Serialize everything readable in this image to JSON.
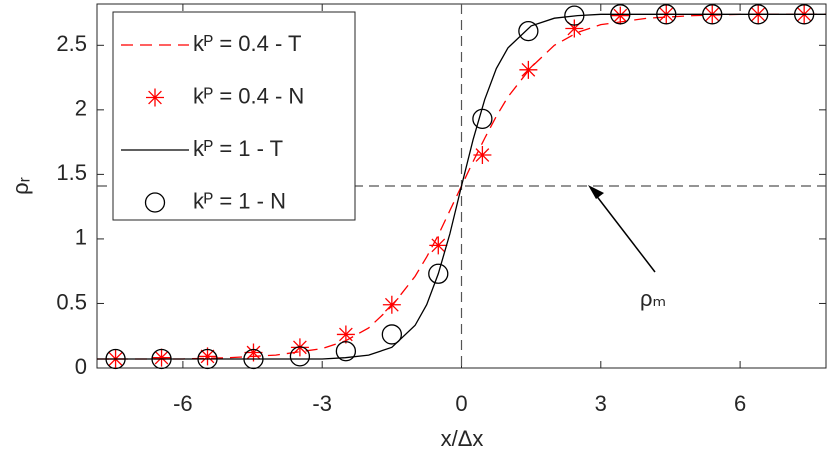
{
  "chart_data": {
    "type": "line",
    "xlabel": "x/Δx",
    "ylabel": "ρᵣ",
    "xlim": [
      -7.85,
      7.85
    ],
    "ylim": [
      0,
      2.82
    ],
    "xticks": [
      -6,
      -3,
      0,
      3,
      6
    ],
    "yticks": [
      0,
      0.5,
      1,
      1.5,
      2,
      2.5
    ],
    "reference_lines": {
      "x": 0,
      "y": 1.41
    },
    "annotation": {
      "text": "ρₘ"
    },
    "legend": "upper left",
    "series": [
      {
        "name": "kᴾ = 0.4 - T",
        "color": "#ff0000",
        "line": "dashed",
        "marker": "none",
        "x": [
          -7.85,
          -7,
          -6,
          -5,
          -4,
          -3,
          -2.5,
          -2,
          -1.5,
          -1,
          -0.75,
          -0.5,
          -0.25,
          0,
          0.25,
          0.5,
          0.75,
          1,
          1.5,
          2,
          2.5,
          3,
          4,
          5,
          6,
          7,
          7.85
        ],
        "values": [
          0.07,
          0.07,
          0.07,
          0.08,
          0.1,
          0.15,
          0.21,
          0.31,
          0.48,
          0.71,
          0.86,
          1.03,
          1.22,
          1.41,
          1.6,
          1.78,
          1.95,
          2.1,
          2.33,
          2.5,
          2.6,
          2.66,
          2.71,
          2.73,
          2.74,
          2.74,
          2.74
        ]
      },
      {
        "name": "kᴾ = 0.4 - N",
        "color": "#ff0000",
        "line": "none",
        "marker": "asterisk",
        "x": [
          -7.45,
          -6.46,
          -5.47,
          -4.48,
          -3.48,
          -2.49,
          -1.5,
          -0.5,
          0.45,
          1.44,
          2.43,
          3.42,
          4.41,
          5.4,
          6.39,
          7.38
        ],
        "values": [
          0.07,
          0.08,
          0.09,
          0.12,
          0.16,
          0.26,
          0.49,
          0.95,
          1.65,
          2.31,
          2.63,
          2.73,
          2.74,
          2.74,
          2.74,
          2.74
        ]
      },
      {
        "name": "kᴾ = 1 - T",
        "color": "#000000",
        "line": "solid",
        "marker": "none",
        "x": [
          -7.85,
          -7,
          -6,
          -5,
          -4,
          -3,
          -2.5,
          -2,
          -1.5,
          -1,
          -0.75,
          -0.5,
          -0.25,
          0,
          0.25,
          0.5,
          0.75,
          1,
          1.5,
          2,
          2.5,
          3,
          4,
          5,
          6,
          7,
          7.85
        ],
        "values": [
          0.07,
          0.07,
          0.07,
          0.07,
          0.07,
          0.07,
          0.08,
          0.1,
          0.16,
          0.33,
          0.49,
          0.73,
          1.04,
          1.41,
          1.77,
          2.08,
          2.32,
          2.48,
          2.65,
          2.71,
          2.73,
          2.74,
          2.74,
          2.74,
          2.74,
          2.74,
          2.74
        ]
      },
      {
        "name": "kᴾ = 1 - N",
        "color": "#000000",
        "line": "none",
        "marker": "circle",
        "x": [
          -7.45,
          -6.46,
          -5.47,
          -4.48,
          -3.48,
          -2.49,
          -1.5,
          -0.5,
          0.45,
          1.44,
          2.43,
          3.42,
          4.41,
          5.4,
          6.39,
          7.38
        ],
        "values": [
          0.07,
          0.07,
          0.07,
          0.07,
          0.09,
          0.13,
          0.26,
          0.73,
          1.93,
          2.61,
          2.73,
          2.74,
          2.74,
          2.74,
          2.74,
          2.74
        ]
      }
    ]
  }
}
